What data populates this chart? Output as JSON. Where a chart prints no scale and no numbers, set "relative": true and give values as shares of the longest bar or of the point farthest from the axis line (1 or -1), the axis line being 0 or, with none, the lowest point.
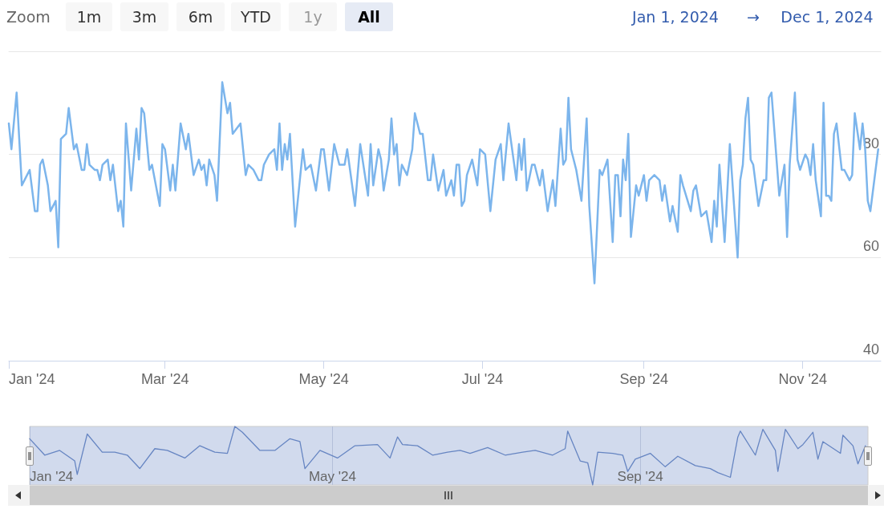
{
  "chart_data": [
    {
      "type": "line",
      "annotations": [
        "Zoom",
        "1m",
        "3m",
        "6m",
        "YTD",
        "1y",
        "All",
        "Jan 1, 2024",
        "→",
        "Dec 1, 2024"
      ],
      "x": [
        "2024-01-01",
        "2024-01-02",
        "2024-01-04",
        "2024-01-06",
        "2024-01-07",
        "2024-01-09",
        "2024-01-11",
        "2024-01-12",
        "2024-01-13",
        "2024-01-14",
        "2024-01-16",
        "2024-01-17",
        "2024-01-19",
        "2024-01-20",
        "2024-01-21",
        "2024-01-23",
        "2024-01-24",
        "2024-01-26",
        "2024-01-27",
        "2024-01-29",
        "2024-01-30",
        "2024-01-31",
        "2024-02-01",
        "2024-02-03",
        "2024-02-04",
        "2024-02-05",
        "2024-02-06",
        "2024-02-08",
        "2024-02-09",
        "2024-02-10",
        "2024-02-12",
        "2024-02-13",
        "2024-02-14",
        "2024-02-15",
        "2024-02-17",
        "2024-02-19",
        "2024-02-20",
        "2024-02-21",
        "2024-02-22",
        "2024-02-24",
        "2024-02-25",
        "2024-02-28",
        "2024-02-29",
        "2024-03-01",
        "2024-03-03",
        "2024-03-04",
        "2024-03-05",
        "2024-03-07",
        "2024-03-09",
        "2024-03-10",
        "2024-03-12",
        "2024-03-14",
        "2024-03-15",
        "2024-03-16",
        "2024-03-17",
        "2024-03-18",
        "2024-03-20",
        "2024-03-21",
        "2024-03-23",
        "2024-03-25",
        "2024-03-26",
        "2024-03-27",
        "2024-03-30",
        "2024-04-01",
        "2024-04-02",
        "2024-04-04",
        "2024-04-06",
        "2024-04-07",
        "2024-04-08",
        "2024-04-10",
        "2024-04-12",
        "2024-04-13",
        "2024-04-14",
        "2024-04-15",
        "2024-04-16",
        "2024-04-17",
        "2024-04-18",
        "2024-04-20",
        "2024-04-23",
        "2024-04-24",
        "2024-04-26",
        "2024-04-28",
        "2024-04-30",
        "2024-05-01",
        "2024-05-03",
        "2024-05-05",
        "2024-05-07",
        "2024-05-09",
        "2024-05-10",
        "2024-05-13",
        "2024-05-15",
        "2024-05-18",
        "2024-05-19",
        "2024-05-20",
        "2024-05-22",
        "2024-05-23",
        "2024-05-24",
        "2024-05-26",
        "2024-05-27",
        "2024-05-28",
        "2024-05-29",
        "2024-05-30",
        "2024-05-31",
        "2024-06-02",
        "2024-06-04",
        "2024-06-05",
        "2024-06-07",
        "2024-06-08",
        "2024-06-10",
        "2024-06-11",
        "2024-06-12",
        "2024-06-14",
        "2024-06-16",
        "2024-06-17",
        "2024-06-19",
        "2024-06-20",
        "2024-06-21",
        "2024-06-22",
        "2024-06-23",
        "2024-06-24",
        "2024-06-25",
        "2024-06-27",
        "2024-06-29",
        "2024-06-30",
        "2024-07-02",
        "2024-07-04",
        "2024-07-06",
        "2024-07-08",
        "2024-07-09",
        "2024-07-11",
        "2024-07-14",
        "2024-07-15",
        "2024-07-16",
        "2024-07-17",
        "2024-07-18",
        "2024-07-20",
        "2024-07-21",
        "2024-07-23",
        "2024-07-24",
        "2024-07-26",
        "2024-07-28",
        "2024-07-29",
        "2024-07-31",
        "2024-08-01",
        "2024-08-02",
        "2024-08-03",
        "2024-08-04",
        "2024-08-06",
        "2024-08-08",
        "2024-08-10",
        "2024-08-11",
        "2024-08-13",
        "2024-08-15",
        "2024-08-16",
        "2024-08-18",
        "2024-08-20",
        "2024-08-21",
        "2024-08-22",
        "2024-08-23",
        "2024-08-24",
        "2024-08-25",
        "2024-08-26",
        "2024-08-27",
        "2024-08-29",
        "2024-08-30",
        "2024-09-01",
        "2024-09-02",
        "2024-09-03",
        "2024-09-05",
        "2024-09-07",
        "2024-09-08",
        "2024-09-09",
        "2024-09-11",
        "2024-09-12",
        "2024-09-14",
        "2024-09-15",
        "2024-09-16",
        "2024-09-19",
        "2024-09-20",
        "2024-09-21",
        "2024-09-23",
        "2024-09-25",
        "2024-09-27",
        "2024-09-28",
        "2024-09-29",
        "2024-09-30",
        "2024-10-02",
        "2024-10-04",
        "2024-10-07",
        "2024-10-08",
        "2024-10-09",
        "2024-10-10",
        "2024-10-11",
        "2024-10-12",
        "2024-10-13",
        "2024-10-15",
        "2024-10-17",
        "2024-10-18",
        "2024-10-19",
        "2024-10-20",
        "2024-10-23",
        "2024-10-25",
        "2024-10-26",
        "2024-10-27",
        "2024-10-29",
        "2024-10-30",
        "2024-10-31",
        "2024-11-02",
        "2024-11-03",
        "2024-11-04",
        "2024-11-05",
        "2024-11-06",
        "2024-11-08",
        "2024-11-09",
        "2024-11-10",
        "2024-11-11",
        "2024-11-12",
        "2024-11-13",
        "2024-11-14",
        "2024-11-16",
        "2024-11-17",
        "2024-11-19",
        "2024-11-20",
        "2024-11-21",
        "2024-11-23",
        "2024-11-24",
        "2024-11-25",
        "2024-11-26",
        "2024-11-27",
        "2024-11-30"
      ],
      "series": [
        {
          "color": "#7cb5ec",
          "values": [
            86,
            81,
            92,
            74,
            75,
            77,
            69,
            69,
            78,
            79,
            74,
            69,
            71,
            62,
            83,
            84,
            89,
            81,
            82,
            77,
            77,
            82,
            78,
            77,
            77,
            75,
            78,
            79,
            75,
            78,
            69,
            71,
            66,
            86,
            73,
            85,
            79,
            89,
            88,
            77,
            78,
            70,
            82,
            81,
            73,
            78,
            73,
            86,
            81,
            84,
            76,
            79,
            77,
            78,
            74,
            79,
            76,
            71,
            94,
            88,
            90,
            84,
            86,
            76,
            78,
            77,
            75,
            75,
            78,
            80,
            81,
            77,
            86,
            77,
            82,
            79,
            84,
            66,
            81,
            77,
            78,
            73,
            81,
            81,
            73,
            82,
            78,
            78,
            81,
            70,
            82,
            72,
            82,
            74,
            81,
            79,
            73,
            79,
            87,
            80,
            82,
            74,
            78,
            76,
            81,
            88,
            84,
            84,
            75,
            75,
            80,
            73,
            77,
            72,
            75,
            72,
            78,
            78,
            70,
            71,
            76,
            79,
            74,
            81,
            80,
            69,
            79,
            82,
            75,
            86,
            75,
            82,
            77,
            83,
            73,
            78,
            78,
            74,
            77,
            69,
            75,
            70,
            85,
            78,
            79,
            91,
            81,
            77,
            71,
            87,
            70,
            55,
            77,
            76,
            79,
            63,
            76,
            76,
            68,
            79,
            75,
            84,
            64,
            74,
            72,
            76,
            71,
            75,
            76,
            75,
            71,
            74,
            67,
            70,
            65,
            76,
            74,
            69,
            73,
            74,
            68,
            69,
            63,
            71,
            66,
            78,
            63,
            82,
            60,
            75,
            78,
            87,
            91,
            79,
            78,
            70,
            75,
            75,
            91,
            92,
            72,
            78,
            64,
            78,
            92,
            79,
            77,
            80,
            79,
            76,
            82,
            75,
            68,
            90,
            72,
            72,
            71,
            84,
            86,
            77,
            77,
            75,
            76,
            88,
            81,
            86,
            81,
            71,
            69,
            81
          ]
        }
      ],
      "xlim": [
        "2024-01-01",
        "2024-12-01"
      ],
      "xticks": [
        {
          "value": "2024-01-01",
          "label": "Jan '24"
        },
        {
          "value": "2024-03-01",
          "label": "Mar '24"
        },
        {
          "value": "2024-05-01",
          "label": "May '24"
        },
        {
          "value": "2024-07-01",
          "label": "Jul '24"
        },
        {
          "value": "2024-09-01",
          "label": "Sep '24"
        },
        {
          "value": "2024-11-01",
          "label": "Nov '24"
        }
      ],
      "ylim": [
        40,
        100
      ],
      "yticks": [
        40,
        60,
        80
      ],
      "grid": "y"
    },
    {
      "type": "line",
      "relative": true,
      "x": [
        "2024-01-01",
        "2024-01-07",
        "2024-01-13",
        "2024-01-19",
        "2024-01-20",
        "2024-01-24",
        "2024-01-30",
        "2024-02-04",
        "2024-02-09",
        "2024-02-14",
        "2024-02-20",
        "2024-02-25",
        "2024-03-03",
        "2024-03-09",
        "2024-03-15",
        "2024-03-20",
        "2024-03-23",
        "2024-03-26",
        "2024-04-02",
        "2024-04-08",
        "2024-04-14",
        "2024-04-18",
        "2024-04-20",
        "2024-04-26",
        "2024-05-03",
        "2024-05-10",
        "2024-05-19",
        "2024-05-24",
        "2024-05-27",
        "2024-05-29",
        "2024-06-04",
        "2024-06-10",
        "2024-06-16",
        "2024-06-21",
        "2024-06-25",
        "2024-07-02",
        "2024-07-09",
        "2024-07-16",
        "2024-07-21",
        "2024-07-28",
        "2024-08-02",
        "2024-08-03",
        "2024-08-08",
        "2024-08-11",
        "2024-08-13",
        "2024-08-15",
        "2024-08-21",
        "2024-08-25",
        "2024-08-27",
        "2024-08-30",
        "2024-09-05",
        "2024-09-11",
        "2024-09-16",
        "2024-09-23",
        "2024-09-29",
        "2024-10-02",
        "2024-10-07",
        "2024-10-10",
        "2024-10-11",
        "2024-10-17",
        "2024-10-20",
        "2024-10-25",
        "2024-10-26",
        "2024-10-29",
        "2024-11-03",
        "2024-11-05",
        "2024-11-09",
        "2024-11-11",
        "2024-11-13",
        "2024-11-20",
        "2024-11-21",
        "2024-11-25",
        "2024-11-27",
        "2024-11-30"
      ],
      "series": [
        {
          "color": "#6685c2",
          "values": [
            0.79,
            0.51,
            0.59,
            0.41,
            0.18,
            0.87,
            0.56,
            0.56,
            0.51,
            0.28,
            0.62,
            0.59,
            0.46,
            0.67,
            0.56,
            0.54,
            1,
            0.9,
            0.59,
            0.59,
            0.79,
            0.74,
            0.28,
            0.59,
            0.46,
            0.67,
            0.69,
            0.46,
            0.82,
            0.69,
            0.67,
            0.51,
            0.56,
            0.59,
            0.54,
            0.64,
            0.51,
            0.56,
            0.59,
            0.51,
            0.62,
            0.92,
            0.41,
            0.38,
            0,
            0.56,
            0.54,
            0.51,
            0.23,
            0.44,
            0.54,
            0.31,
            0.49,
            0.33,
            0.28,
            0.21,
            0.13,
            0.82,
            0.92,
            0.51,
            0.95,
            0.59,
            0.23,
            0.95,
            0.62,
            0.69,
            0.9,
            0.44,
            0.74,
            0.54,
            0.85,
            0.67,
            0.36,
            0.67
          ]
        }
      ],
      "xlim": [
        "2024-01-01",
        "2024-12-01"
      ],
      "xticks": [
        {
          "value": "2024-01-01",
          "label": "Jan '24"
        },
        {
          "value": "2024-05-01",
          "label": "May '24"
        },
        {
          "value": "2024-09-01",
          "label": "Sep '24"
        }
      ],
      "grid": "x"
    }
  ]
}
